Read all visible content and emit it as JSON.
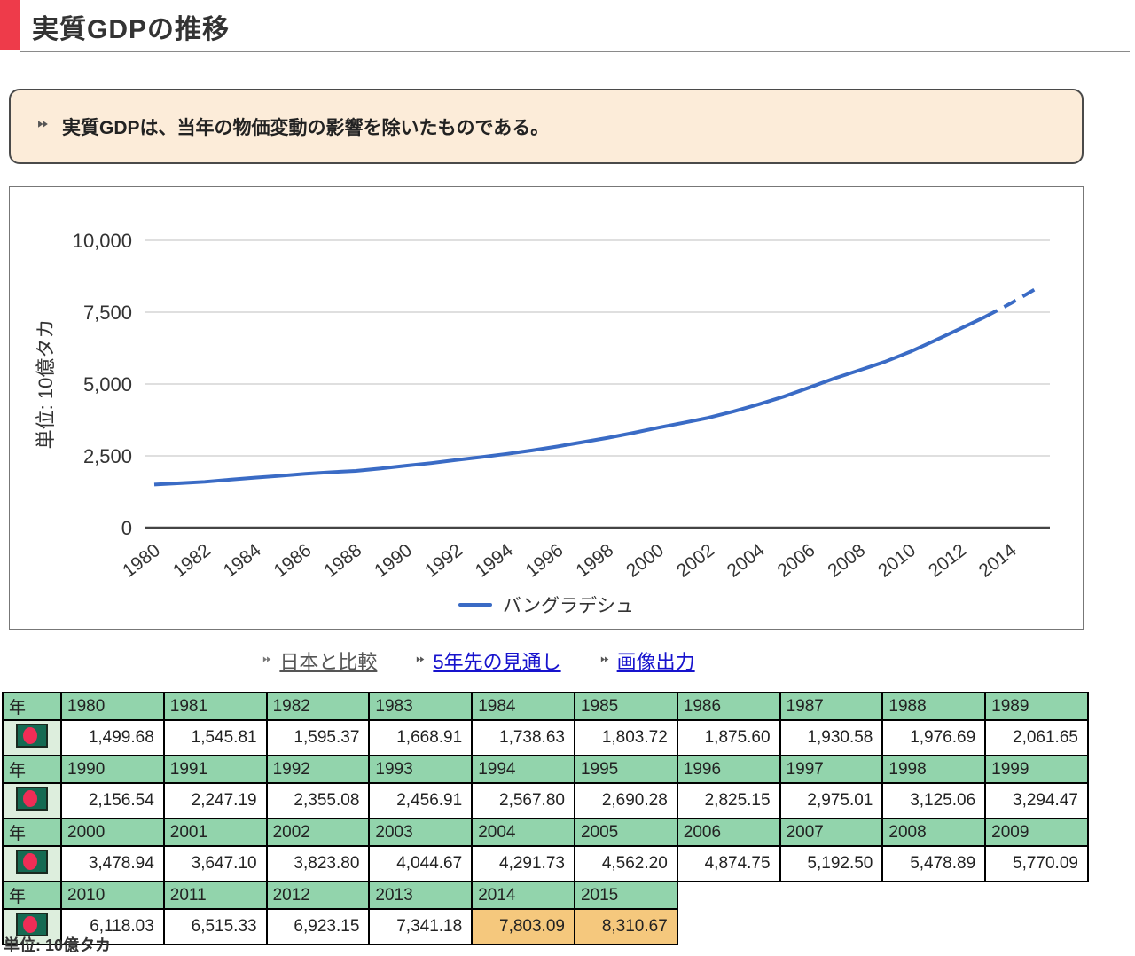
{
  "header": {
    "title": "実質GDPの推移"
  },
  "note": {
    "text": "実質GDPは、当年の物価変動の影響を除いたものである。"
  },
  "links": [
    {
      "label": "日本と比較"
    },
    {
      "label": "5年先の見通し"
    },
    {
      "label": "画像出力"
    }
  ],
  "chart_data": {
    "type": "line",
    "title": "",
    "xlabel": "",
    "ylabel": "単位: 10億タカ",
    "ylim": [
      0,
      10000
    ],
    "yticks": [
      0,
      2500,
      5000,
      7500,
      10000
    ],
    "ytick_labels": [
      "0",
      "2,500",
      "5,000",
      "7,500",
      "10,000"
    ],
    "xtick_years": [
      1980,
      1982,
      1984,
      1986,
      1988,
      1990,
      1992,
      1994,
      1996,
      1998,
      2000,
      2002,
      2004,
      2006,
      2008,
      2010,
      2012,
      2014
    ],
    "x": [
      1980,
      1981,
      1982,
      1983,
      1984,
      1985,
      1986,
      1987,
      1988,
      1989,
      1990,
      1991,
      1992,
      1993,
      1994,
      1995,
      1996,
      1997,
      1998,
      1999,
      2000,
      2001,
      2002,
      2003,
      2004,
      2005,
      2006,
      2007,
      2008,
      2009,
      2010,
      2011,
      2012,
      2013,
      2014,
      2015
    ],
    "series": [
      {
        "name": "バングラデシュ",
        "values": [
          1499.68,
          1545.81,
          1595.37,
          1668.91,
          1738.63,
          1803.72,
          1875.6,
          1930.58,
          1976.69,
          2061.65,
          2156.54,
          2247.19,
          2355.08,
          2456.91,
          2567.8,
          2690.28,
          2825.15,
          2975.01,
          3125.06,
          3294.47,
          3478.94,
          3647.1,
          3823.8,
          4044.67,
          4291.73,
          4562.2,
          4874.75,
          5192.5,
          5478.89,
          5770.09,
          6118.03,
          6515.33,
          6923.15,
          7341.18,
          7803.09,
          8310.67
        ],
        "forecast_from_index": 33
      }
    ],
    "line_color": "#3a6bc5",
    "grid": true,
    "legend_position": "bottom"
  },
  "table": {
    "row_header": "年",
    "flag": "bangladesh-flag",
    "groups": [
      {
        "years": [
          "1980",
          "1981",
          "1982",
          "1983",
          "1984",
          "1985",
          "1986",
          "1987",
          "1988",
          "1989"
        ],
        "values": [
          "1,499.68",
          "1,545.81",
          "1,595.37",
          "1,668.91",
          "1,738.63",
          "1,803.72",
          "1,875.60",
          "1,930.58",
          "1,976.69",
          "2,061.65"
        ],
        "highlight": []
      },
      {
        "years": [
          "1990",
          "1991",
          "1992",
          "1993",
          "1994",
          "1995",
          "1996",
          "1997",
          "1998",
          "1999"
        ],
        "values": [
          "2,156.54",
          "2,247.19",
          "2,355.08",
          "2,456.91",
          "2,567.80",
          "2,690.28",
          "2,825.15",
          "2,975.01",
          "3,125.06",
          "3,294.47"
        ],
        "highlight": []
      },
      {
        "years": [
          "2000",
          "2001",
          "2002",
          "2003",
          "2004",
          "2005",
          "2006",
          "2007",
          "2008",
          "2009"
        ],
        "values": [
          "3,478.94",
          "3,647.10",
          "3,823.80",
          "4,044.67",
          "4,291.73",
          "4,562.20",
          "4,874.75",
          "5,192.50",
          "5,478.89",
          "5,770.09"
        ],
        "highlight": []
      },
      {
        "years": [
          "2010",
          "2011",
          "2012",
          "2013",
          "2014",
          "2015"
        ],
        "values": [
          "6,118.03",
          "6,515.33",
          "6,923.15",
          "7,341.18",
          "7,803.09",
          "8,310.67"
        ],
        "highlight": [
          4,
          5
        ]
      }
    ]
  },
  "footer": {
    "unit_label": "単位: 10億タカ"
  },
  "colors": {
    "accent_red": "#ee3b4a",
    "note_bg": "#fcecd9",
    "table_header_green": "#92d4ac",
    "flag_cell_green": "#ddeedd",
    "highlight_orange": "#f5c87d",
    "line_blue": "#3a6bc5",
    "link_blue": "#1713cd",
    "link_gray": "#555555",
    "flag_green": "#156a52",
    "flag_red": "#ef2d56"
  }
}
